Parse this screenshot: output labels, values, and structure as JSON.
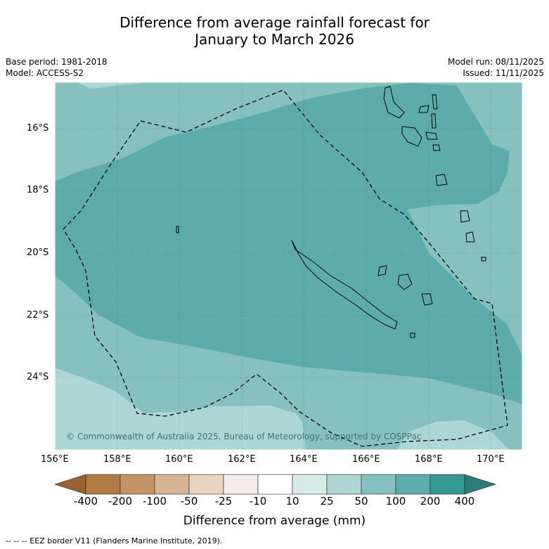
{
  "title_line1": "Difference from average rainfall forecast for",
  "title_line2": "January to March 2026",
  "base_period": "Base period: 1981-2018",
  "model": "Model: ACCESS-S2",
  "model_run": "Model run: 08/11/2025",
  "issued": "Issued: 11/11/2025",
  "copyright": "© Commonwealth of Australia 2025, Bureau of Meteorology, supported by COSPPac",
  "lat_labels": [
    "16°S",
    "18°S",
    "20°S",
    "22°S",
    "24°S"
  ],
  "lon_labels": [
    "156°E",
    "158°E",
    "160°E",
    "162°E",
    "164°E",
    "166°E",
    "168°E",
    "170°E"
  ],
  "colorbar": {
    "title": "Difference from average (mm)",
    "ticks": [
      "-400",
      "-200",
      "-100",
      "-50",
      "-25",
      "-10",
      "10",
      "25",
      "50",
      "100",
      "200",
      "400"
    ],
    "colors": [
      "#9a6232",
      "#b27a45",
      "#c49467",
      "#d6b394",
      "#e7d3c0",
      "#f1ecea",
      "#ffffff",
      "#d6eae7",
      "#aed6d5",
      "#86c1bf",
      "#5dabab",
      "#359995",
      "#2e7c79"
    ]
  },
  "legend_footer": "--  --  -- EEZ border V11 (Flanders Marine Institute, 2019)."
}
